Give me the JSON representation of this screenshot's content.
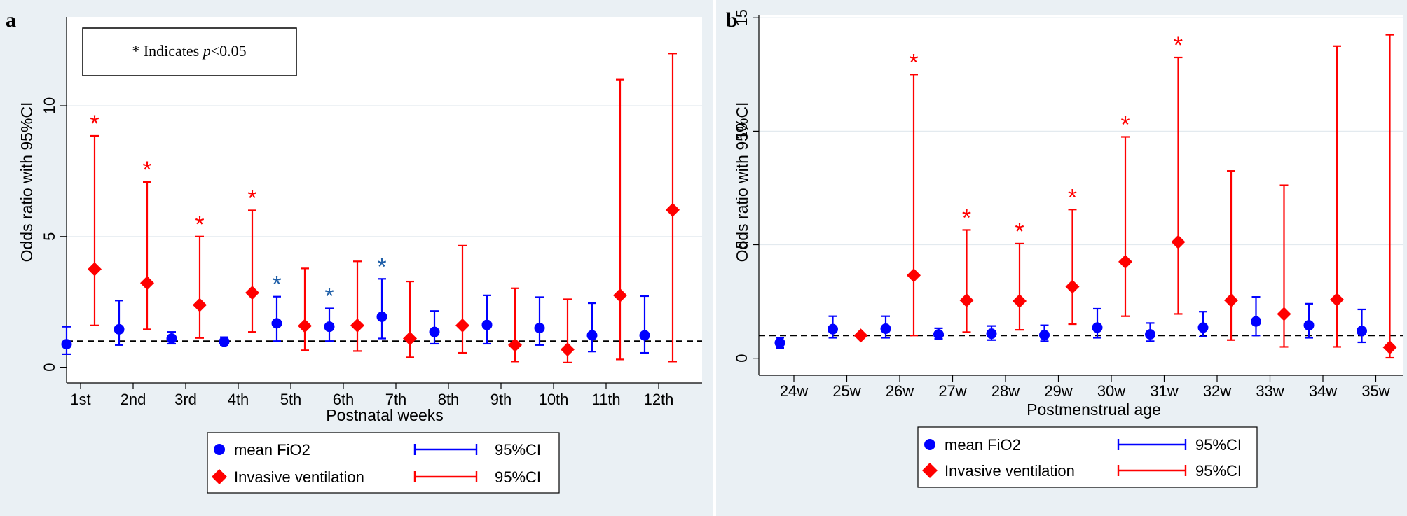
{
  "colors": {
    "fio2": "#0000ff",
    "iv": "#ff0000",
    "star_fio2": "#1f5fa8",
    "star_iv": "#ff0000"
  },
  "chart_data": [
    {
      "panel": "a",
      "type": "scatter",
      "xlabel": "Postnatal weeks",
      "ylabel": "Odds ratio with 95%CI",
      "categories": [
        "1st",
        "2nd",
        "3rd",
        "4th",
        "5th",
        "6th",
        "7th",
        "8th",
        "9th",
        "10th",
        "11th",
        "12th"
      ],
      "ylim": [
        -0.6,
        13.4
      ],
      "yticks": [
        0,
        5,
        10
      ],
      "ref_line": 1,
      "note": {
        "prefix": "* Indicates ",
        "italic": "p",
        "suffix": "<0.05"
      },
      "series": [
        {
          "name": "mean FiO2",
          "marker": "circle",
          "values": [
            0.88,
            1.45,
            1.1,
            0.98,
            1.68,
            1.55,
            1.93,
            1.35,
            1.62,
            1.5,
            1.22,
            1.22
          ],
          "lower": [
            0.5,
            0.85,
            0.9,
            0.85,
            1.0,
            1.0,
            1.1,
            0.9,
            0.9,
            0.85,
            0.6,
            0.55
          ],
          "upper": [
            1.55,
            2.55,
            1.35,
            1.15,
            2.7,
            2.25,
            3.38,
            2.15,
            2.75,
            2.68,
            2.45,
            2.72
          ],
          "significant": [
            false,
            false,
            false,
            false,
            true,
            true,
            true,
            false,
            false,
            false,
            false,
            false
          ]
        },
        {
          "name": "Invasive ventilation",
          "marker": "diamond",
          "values": [
            3.75,
            3.22,
            2.38,
            2.85,
            1.58,
            1.6,
            1.1,
            1.6,
            0.85,
            0.68,
            2.75,
            6.02
          ],
          "lower": [
            1.6,
            1.45,
            1.12,
            1.35,
            0.65,
            0.62,
            0.38,
            0.55,
            0.22,
            0.18,
            0.3,
            0.22
          ],
          "upper": [
            8.85,
            7.08,
            5.0,
            6.0,
            3.78,
            4.05,
            3.28,
            4.65,
            3.02,
            2.6,
            11.0,
            12.0
          ],
          "significant": [
            true,
            true,
            true,
            true,
            false,
            false,
            false,
            false,
            false,
            false,
            false,
            false
          ]
        }
      ],
      "legend": [
        {
          "label": "mean FiO2",
          "ci_label": "95%CI"
        },
        {
          "label": "Invasive ventilation",
          "ci_label": "95%CI"
        }
      ]
    },
    {
      "panel": "b",
      "type": "scatter",
      "xlabel": "Postmenstrual age",
      "ylabel": "Odds ratio with 95%CI",
      "categories": [
        "24w",
        "25w",
        "26w",
        "27w",
        "28w",
        "29w",
        "30w",
        "31w",
        "32w",
        "33w",
        "34w",
        "35w"
      ],
      "ylim": [
        -0.75,
        15.1
      ],
      "yticks": [
        0,
        5,
        10,
        15
      ],
      "ref_line": 1,
      "series": [
        {
          "name": "mean FiO2",
          "marker": "circle",
          "values": [
            0.68,
            1.28,
            1.3,
            1.05,
            1.08,
            1.02,
            1.35,
            1.05,
            1.35,
            1.62,
            1.45,
            1.2
          ],
          "lower": [
            0.45,
            0.9,
            0.9,
            0.85,
            0.8,
            0.75,
            0.9,
            0.75,
            0.95,
            1.0,
            0.9,
            0.7
          ],
          "upper": [
            0.9,
            1.85,
            1.85,
            1.32,
            1.42,
            1.45,
            2.18,
            1.55,
            2.05,
            2.7,
            2.4,
            2.15
          ],
          "significant": [
            false,
            false,
            false,
            false,
            false,
            false,
            false,
            false,
            false,
            false,
            false,
            false
          ]
        },
        {
          "name": "Invasive ventilation",
          "marker": "diamond",
          "values": [
            null,
            1.0,
            3.65,
            2.55,
            2.52,
            3.15,
            4.25,
            5.12,
            2.55,
            1.95,
            2.58,
            0.48
          ],
          "lower": [
            null,
            null,
            1.0,
            1.15,
            1.25,
            1.5,
            1.85,
            1.95,
            0.8,
            0.5,
            0.5,
            0.02
          ],
          "upper": [
            null,
            null,
            12.5,
            5.65,
            5.05,
            6.55,
            9.75,
            13.25,
            8.25,
            7.62,
            13.75,
            14.25
          ],
          "significant": [
            false,
            false,
            true,
            true,
            true,
            true,
            true,
            true,
            false,
            false,
            false,
            false
          ]
        }
      ],
      "legend": [
        {
          "label": "mean FiO2",
          "ci_label": "95%CI"
        },
        {
          "label": "Invasive ventilation",
          "ci_label": "95%CI"
        }
      ]
    }
  ],
  "star_symbol": "*"
}
